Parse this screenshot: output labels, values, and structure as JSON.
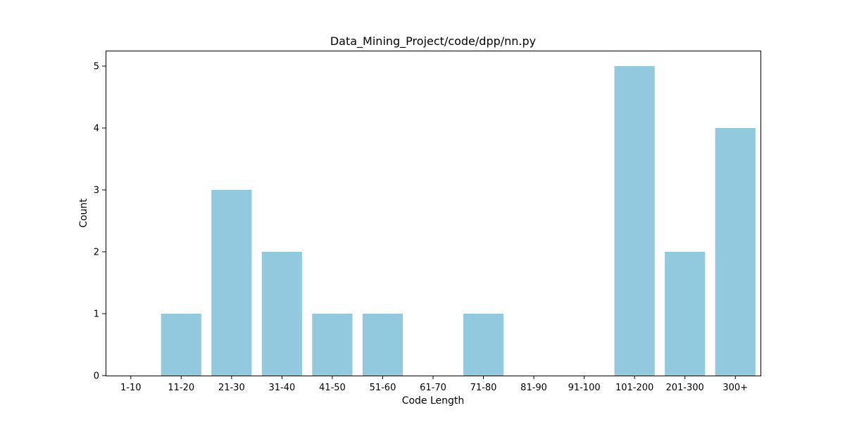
{
  "chart_data": {
    "type": "bar",
    "title": "Data_Mining_Project/code/dpp/nn.py",
    "xlabel": "Code Length",
    "ylabel": "Count",
    "categories": [
      "1-10",
      "11-20",
      "21-30",
      "31-40",
      "41-50",
      "51-60",
      "61-70",
      "71-80",
      "81-90",
      "91-100",
      "101-200",
      "201-300",
      "300+"
    ],
    "values": [
      0,
      1,
      3,
      2,
      1,
      1,
      0,
      1,
      0,
      0,
      5,
      2,
      4
    ],
    "ylim": [
      0,
      5.25
    ],
    "yticks": [
      0,
      1,
      2,
      3,
      4,
      5
    ],
    "grid": false,
    "bar_color": "#92c9df"
  }
}
